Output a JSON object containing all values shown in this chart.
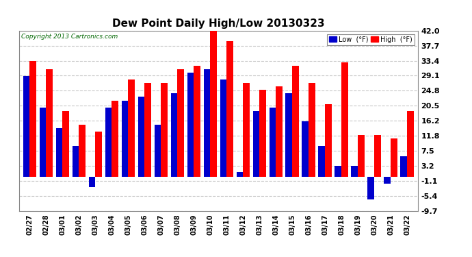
{
  "title": "Dew Point Daily High/Low 20130323",
  "copyright": "Copyright 2013 Cartronics.com",
  "dates": [
    "02/27",
    "02/28",
    "03/01",
    "03/02",
    "03/03",
    "03/04",
    "03/05",
    "03/06",
    "03/07",
    "03/08",
    "03/09",
    "03/10",
    "03/11",
    "03/12",
    "03/13",
    "03/14",
    "03/15",
    "03/16",
    "03/17",
    "03/18",
    "03/19",
    "03/20",
    "03/21",
    "03/22"
  ],
  "high": [
    33.4,
    31.0,
    19.0,
    15.0,
    13.0,
    22.0,
    28.0,
    27.0,
    27.0,
    31.0,
    32.0,
    42.0,
    39.0,
    27.0,
    25.0,
    26.0,
    32.0,
    27.0,
    21.0,
    33.0,
    12.0,
    12.0,
    11.0,
    19.0
  ],
  "low": [
    29.0,
    20.0,
    14.0,
    9.0,
    -3.0,
    20.0,
    22.0,
    23.0,
    15.0,
    24.0,
    30.0,
    31.0,
    28.0,
    1.5,
    19.0,
    20.0,
    24.0,
    16.0,
    9.0,
    3.2,
    3.2,
    -6.5,
    -2.0,
    6.0
  ],
  "ylim": [
    -9.7,
    42.0
  ],
  "yticks": [
    42.0,
    37.7,
    33.4,
    29.1,
    24.8,
    20.5,
    16.2,
    11.8,
    7.5,
    3.2,
    -1.1,
    -5.4,
    -9.7
  ],
  "grid_color": "#c8c8c8",
  "high_color": "#ff0000",
  "low_color": "#0000cc",
  "bg_color": "#ffffff",
  "legend_low_label": "Low  (°F)",
  "legend_high_label": "High  (°F)",
  "figwidth": 6.9,
  "figheight": 3.75,
  "dpi": 100
}
